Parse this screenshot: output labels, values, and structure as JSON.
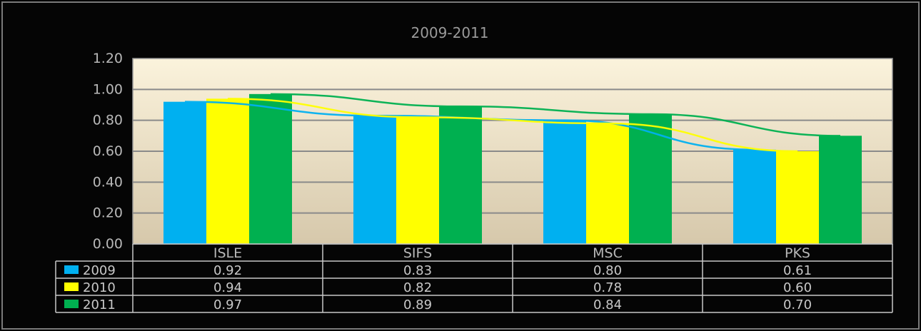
{
  "chart_data": {
    "type": "bar",
    "title": "",
    "subtitle": "2009-2011",
    "xlabel": "",
    "ylabel": "",
    "ylim": [
      0,
      1.2
    ],
    "yticks": [
      "0.00",
      "0.20",
      "0.40",
      "0.60",
      "0.80",
      "1.00",
      "1.20"
    ],
    "categories": [
      "ISLE",
      "SIFS",
      "MSC",
      "PKS"
    ],
    "series": [
      {
        "name": "2009",
        "color": "#00b0f0",
        "values": [
          0.92,
          0.83,
          0.8,
          0.61
        ]
      },
      {
        "name": "2010",
        "color": "#ffff00",
        "values": [
          0.94,
          0.82,
          0.78,
          0.6
        ]
      },
      {
        "name": "2011",
        "color": "#00b050",
        "values": [
          0.97,
          0.89,
          0.84,
          0.7
        ]
      }
    ],
    "trendlines": true,
    "data_table": true,
    "grid": true,
    "plot_background": [
      "#fbf3dc",
      "#d6c8ab"
    ]
  }
}
